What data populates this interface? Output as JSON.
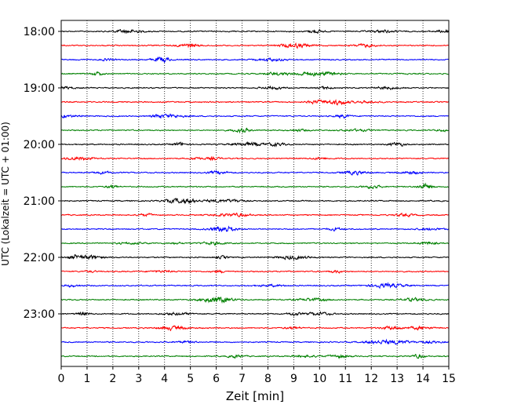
{
  "chart_data": {
    "type": "line",
    "title": "",
    "xlabel": "Zeit  [min]",
    "ylabel": "UTC (Lokalzeit = UTC + 01:00)",
    "xlim": [
      0,
      15
    ],
    "x_ticks": [
      "0",
      "1",
      "2",
      "3",
      "4",
      "5",
      "6",
      "7",
      "8",
      "9",
      "10",
      "11",
      "12",
      "13",
      "14",
      "15"
    ],
    "y_ticks": [
      "18:00",
      "19:00",
      "20:00",
      "21:00",
      "22:00",
      "23:00"
    ],
    "grid": "vertical dotted lines at each minute",
    "trace_interval_minutes": 15,
    "trace_start": "18:00",
    "trace_count": 24,
    "trace_colors": [
      "#000000",
      "#ff0000",
      "#0000ff",
      "#008000"
    ]
  }
}
